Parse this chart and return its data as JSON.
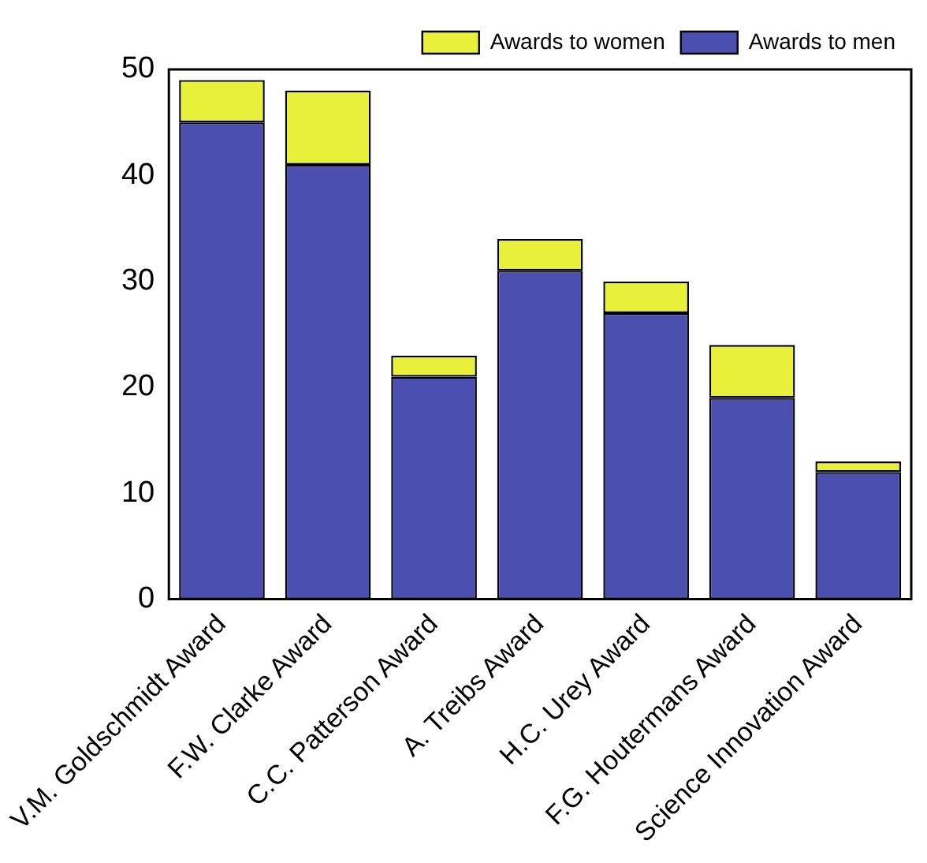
{
  "chart_data": {
    "type": "bar",
    "stacked": true,
    "categories": [
      "V.M. Goldschmidt Award",
      "F.W. Clarke Award",
      "C.C. Patterson Award",
      "A. Treibs Award",
      "H.C. Urey Award",
      "F.G. Houtermans Award",
      "Science Innovation Award"
    ],
    "series": [
      {
        "name": "Awards to men",
        "color": "#4a4fb0",
        "values": [
          45,
          41,
          21,
          31,
          27,
          19,
          12
        ]
      },
      {
        "name": "Awards to women",
        "color": "#e8f03a",
        "values": [
          4,
          7,
          2,
          3,
          3,
          5,
          1
        ]
      }
    ],
    "ylim": [
      0,
      50
    ],
    "yticks": [
      0,
      10,
      20,
      30,
      40,
      50
    ],
    "grid": false,
    "legend": "top right"
  }
}
